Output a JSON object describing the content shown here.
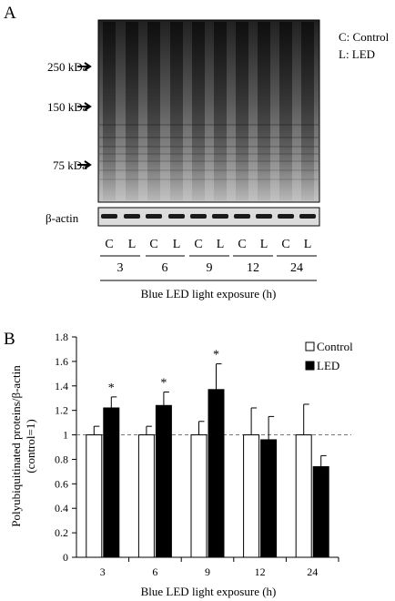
{
  "panel_a": {
    "label": "A",
    "legend": [
      "C: Control",
      "L: LED"
    ],
    "markers": [
      "250 kDa",
      "150 kDa",
      "75 kDa"
    ],
    "loading_control": "β-actin",
    "lane_labels": [
      "C",
      "L",
      "C",
      "L",
      "C",
      "L",
      "C",
      "L",
      "C",
      "L"
    ],
    "timepoints": [
      "3",
      "6",
      "9",
      "12",
      "24"
    ],
    "xlabel": "Blue LED light exposure (h)"
  },
  "chart_data": {
    "type": "bar",
    "panel_label": "B",
    "categories": [
      "3",
      "6",
      "9",
      "12",
      "24"
    ],
    "series": [
      {
        "name": "Control",
        "values": [
          1.0,
          1.0,
          1.0,
          1.0,
          1.0
        ],
        "errors": [
          0.07,
          0.07,
          0.11,
          0.22,
          0.25
        ],
        "color": "#ffffff"
      },
      {
        "name": "LED",
        "values": [
          1.22,
          1.24,
          1.37,
          0.96,
          0.74
        ],
        "errors": [
          0.09,
          0.11,
          0.21,
          0.19,
          0.09
        ],
        "color": "#000000"
      }
    ],
    "significance": [
      "*",
      "*",
      "*",
      "",
      ""
    ],
    "reference_line": 1,
    "xlabel": "Blue LED light exposure (h)",
    "ylabel": "Polyubiquitinated proteins/β-actin",
    "ylabel2": "(control=1)",
    "ylim": [
      0,
      1.8
    ],
    "yticks": [
      "0",
      "0.2",
      "0.4",
      "0.6",
      "0.8",
      "1",
      "1.2",
      "1.4",
      "1.6",
      "1.8"
    ],
    "legend_position": "top-right",
    "grid": false
  }
}
